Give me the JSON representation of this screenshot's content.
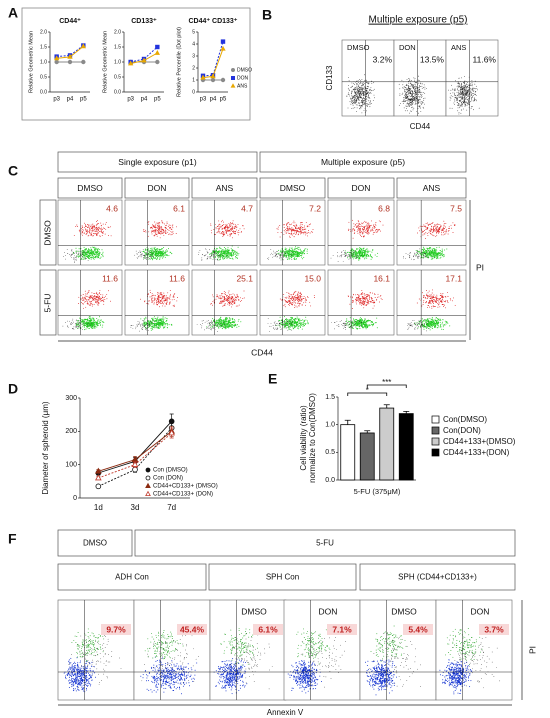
{
  "panel_labels": {
    "a": "A",
    "b": "B",
    "c": "C",
    "d": "D",
    "e": "E",
    "f": "F"
  },
  "panel_a": {
    "series_names": [
      "DMSO",
      "DON",
      "ANS"
    ],
    "colors": [
      "#8a8a8a",
      "#2233dd",
      "#e8a800"
    ],
    "markers": [
      "circle",
      "square",
      "triangle"
    ],
    "charts": [
      {
        "title": "CD44⁺",
        "ylabel": "Relative Geometric Mean",
        "categories": [
          "p3",
          "p4",
          "p5"
        ],
        "ylim": [
          0,
          2
        ],
        "yticks": [
          {
            "value": 0,
            "label": "0.0"
          },
          {
            "value": 0.5,
            "label": "0.5"
          },
          {
            "value": 1,
            "label": "1.0"
          },
          {
            "value": 1.5,
            "label": "1.5"
          },
          {
            "value": 2,
            "label": "2.0"
          }
        ],
        "values": [
          [
            1,
            1,
            1
          ],
          [
            1.18,
            1.22,
            1.55
          ],
          [
            1.12,
            1.17,
            1.52
          ]
        ]
      },
      {
        "title": "CD133⁺",
        "ylabel": "Relative Geometric Mean",
        "categories": [
          "p3",
          "p4",
          "p5"
        ],
        "ylim": [
          0,
          2
        ],
        "yticks": [
          {
            "value": 0,
            "label": "0.0"
          },
          {
            "value": 0.5,
            "label": "0.5"
          },
          {
            "value": 1,
            "label": "1.0"
          },
          {
            "value": 1.5,
            "label": "1.5"
          },
          {
            "value": 2,
            "label": "2.0"
          }
        ],
        "values": [
          [
            1,
            1,
            1
          ],
          [
            1.0,
            1.1,
            1.5
          ],
          [
            0.95,
            1.05,
            1.3
          ]
        ]
      },
      {
        "title": "CD44⁺ CD133⁺",
        "ylabel": "Relative Percentile (Dot plot)",
        "categories": [
          "p3",
          "p4",
          "p5"
        ],
        "ylim": [
          0,
          5
        ],
        "yticks": [
          0,
          1,
          2,
          3,
          4,
          5
        ],
        "values": [
          [
            1,
            1,
            1
          ],
          [
            1.35,
            1.4,
            4.2
          ],
          [
            1.2,
            1.3,
            3.6
          ]
        ]
      }
    ]
  },
  "panel_b": {
    "title": "Multiple exposure (p5)",
    "ylabel": "CD133",
    "xlabel": "CD44",
    "plots": [
      {
        "label": "DMSO",
        "percent": "3.2%"
      },
      {
        "label": "DON",
        "percent": "13.5%"
      },
      {
        "label": "ANS",
        "percent": "11.6%"
      }
    ]
  },
  "panel_c": {
    "groups": [
      "Single exposure (p1)",
      "Multiple exposure (p5)"
    ],
    "columns": [
      "DMSO",
      "DON",
      "ANS",
      "DMSO",
      "DON",
      "ANS"
    ],
    "rows": [
      {
        "label": "DMSO",
        "values": [
          "4.6",
          "6.1",
          "4.7",
          "7.2",
          "6.8",
          "7.5"
        ]
      },
      {
        "label": "5-FU",
        "values": [
          "11.6",
          "11.6",
          "25.1",
          "15.0",
          "16.1",
          "17.1"
        ]
      }
    ],
    "ylabel": "PI",
    "xlabel": "CD44"
  },
  "panel_d": {
    "ylabel": "Diameter of spheroid (μm)",
    "categories": [
      "1d",
      "3d",
      "7d"
    ],
    "ylim": [
      0,
      300
    ],
    "yticks": [
      0,
      100,
      200,
      300
    ],
    "series": [
      {
        "name": "Con (DMSO)",
        "color": "#111111",
        "marker": "filled-circle",
        "values": [
          75,
          110,
          230
        ],
        "errors": [
          6,
          12,
          22
        ]
      },
      {
        "name": "Con (DON)",
        "color": "#111111",
        "marker": "open-circle",
        "values": [
          35,
          85,
          210
        ],
        "errors": [
          4,
          8,
          15
        ]
      },
      {
        "name": "CD44+CD133+ (DMSO)",
        "color": "#8b2a10",
        "marker": "filled-triangle",
        "values": [
          80,
          115,
          200
        ],
        "errors": [
          5,
          10,
          15
        ]
      },
      {
        "name": "CD44+CD133+ (DON)",
        "color": "#c0392b",
        "marker": "open-triangle",
        "values": [
          60,
          100,
          195
        ],
        "errors": [
          4,
          8,
          15
        ]
      }
    ]
  },
  "panel_e": {
    "ylabel": [
      "Cell viability (ratio)",
      "normalize to Con(DMSO)"
    ],
    "xlabel": "5-FU (375μM)",
    "ylim": [
      0,
      1.5
    ],
    "yticks": [
      {
        "value": 0,
        "label": "0.0"
      },
      {
        "value": 0.5,
        "label": "0.5"
      },
      {
        "value": 1,
        "label": "1.0"
      },
      {
        "value": 1.5,
        "label": "1.5"
      }
    ],
    "categories": [
      "Con(DMSO)",
      "Con(DON)",
      "CD44+133+(DMSO)",
      "CD44+133+(DON)"
    ],
    "colors": [
      "#ffffff",
      "#666666",
      "#cccccc",
      "#000000"
    ],
    "values": [
      1.0,
      0.85,
      1.3,
      1.2
    ],
    "errors": [
      0.08,
      0.04,
      0.06,
      0.04
    ],
    "significance": [
      "*",
      "***"
    ]
  },
  "panel_f": {
    "treatments": [
      "DMSO",
      "5-FU"
    ],
    "groups": [
      "ADH Con",
      "SPH Con",
      "SPH (CD44+CD133+)"
    ],
    "plots": [
      {
        "percent": "9.7%"
      },
      {
        "percent": "45.4%"
      },
      {
        "label": "DMSO",
        "percent": "6.1%"
      },
      {
        "label": "DON",
        "percent": "7.1%"
      },
      {
        "label": "DMSO",
        "percent": "5.4%"
      },
      {
        "label": "DON",
        "percent": "3.7%"
      }
    ],
    "ylabel": "PI",
    "xlabel": "Annexin V"
  }
}
